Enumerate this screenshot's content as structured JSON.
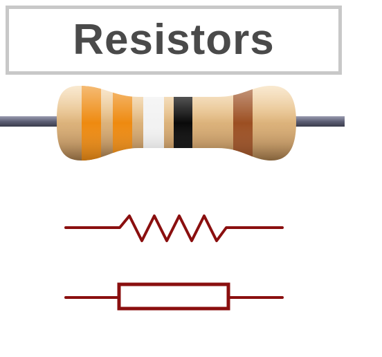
{
  "title": "Resistors",
  "resistor_image": {
    "bands": [
      "orange",
      "orange",
      "white",
      "black",
      "brown"
    ],
    "band_colors": [
      "#ee8a10",
      "#ee8a10",
      "#f2f2f2",
      "#0a0a0a",
      "#9c4f22"
    ],
    "body_color": "#d9b07a",
    "lead_color": "#6d6f82"
  },
  "symbols": [
    {
      "name": "zigzag",
      "color": "#8a0f0f"
    },
    {
      "name": "rectangle",
      "color": "#8a0f0f"
    }
  ]
}
